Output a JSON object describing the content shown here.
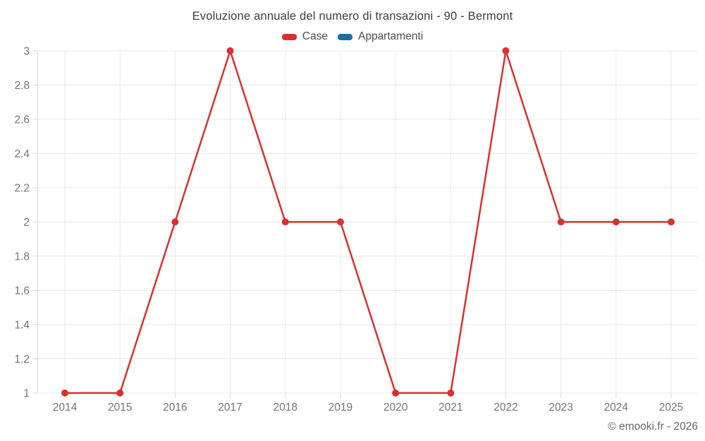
{
  "title": "Evoluzione annuale del numero di transazioni - 90 - Bermont",
  "footer": "© emooki.fr - 2026",
  "chart_data": {
    "type": "line",
    "title": "Evoluzione annuale del numero di transazioni - 90 - Bermont",
    "x": [
      2014,
      2015,
      2016,
      2017,
      2018,
      2019,
      2020,
      2021,
      2022,
      2023,
      2024,
      2025
    ],
    "series": [
      {
        "name": "Case",
        "color": "#dc2f2f",
        "values": [
          1,
          1,
          2,
          3,
          2,
          2,
          1,
          1,
          3,
          2,
          2,
          2
        ]
      },
      {
        "name": "Appartamenti",
        "color": "#1a6fa8",
        "values": []
      }
    ],
    "xlabel": "",
    "ylabel": "",
    "ylim": [
      1,
      3
    ],
    "yticks": [
      1,
      1.2,
      1.4,
      1.6,
      1.8,
      2,
      2.2,
      2.4,
      2.6,
      2.8,
      3
    ],
    "grid": true,
    "legend_position": "top",
    "grid_color": "#e8e8e8",
    "axis_color": "#d9d9d9",
    "tick_label_color": "#757575"
  }
}
